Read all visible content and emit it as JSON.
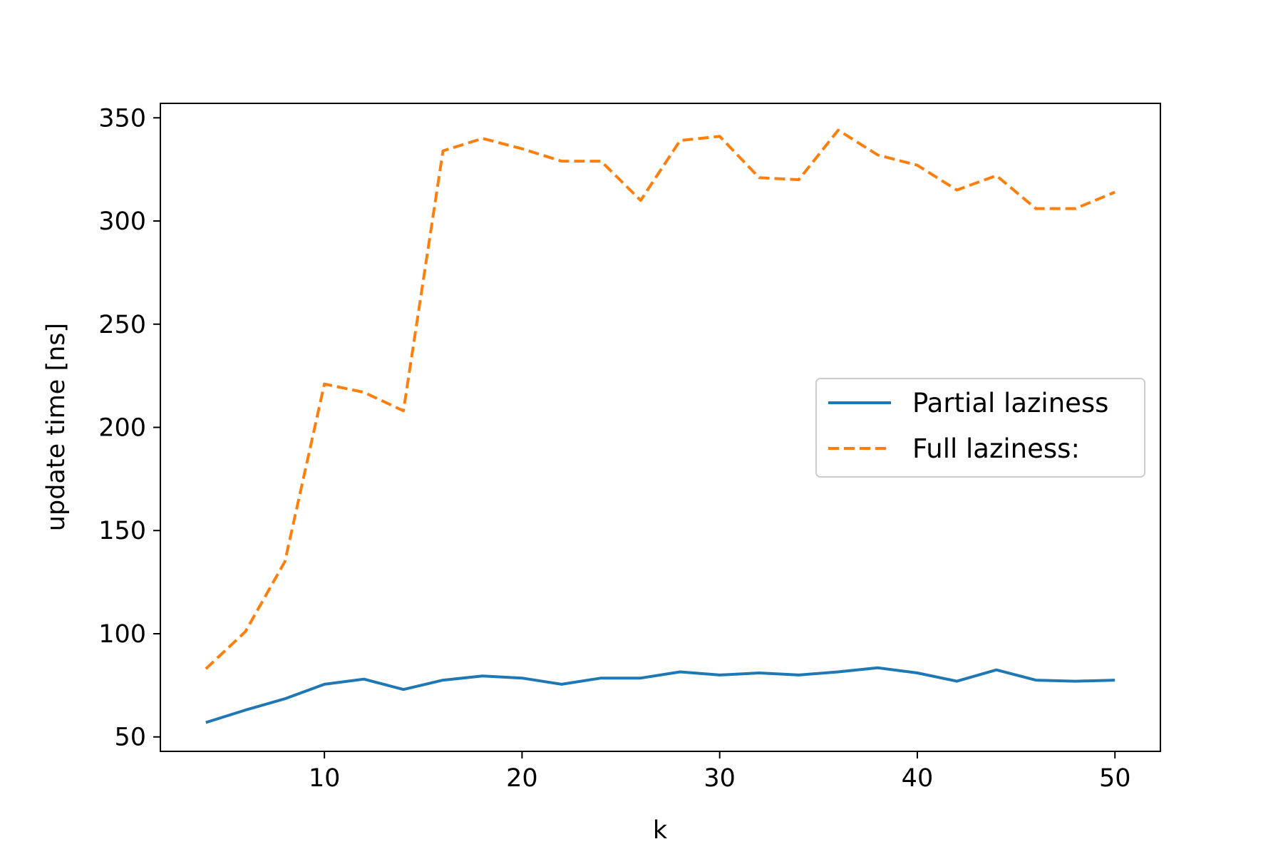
{
  "chart_data": {
    "type": "line",
    "title": "",
    "xlabel": "k",
    "ylabel": "update time [ns]",
    "xlim": [
      1.7,
      52.3
    ],
    "ylim": [
      43,
      357
    ],
    "xticks": [
      10,
      20,
      30,
      40,
      50
    ],
    "yticks": [
      50,
      100,
      150,
      200,
      250,
      300,
      350
    ],
    "grid": false,
    "legend_position": "center-right",
    "x": [
      4,
      6,
      8,
      10,
      12,
      14,
      16,
      18,
      20,
      22,
      24,
      26,
      28,
      30,
      32,
      34,
      36,
      38,
      40,
      42,
      44,
      46,
      48,
      50
    ],
    "series": [
      {
        "name": "Partial laziness",
        "color": "#1f77b4",
        "style": "solid",
        "values": [
          57,
          63,
          68.5,
          75.5,
          78,
          73,
          77.5,
          79.5,
          78.5,
          75.5,
          78.5,
          78.5,
          81.5,
          80,
          81,
          80,
          81.5,
          83.5,
          81,
          77,
          82.5,
          77.5,
          77,
          77.5
        ]
      },
      {
        "name": "Full laziness:",
        "color": "#ff7f0e",
        "style": "dashed",
        "values": [
          83,
          101,
          135,
          221,
          217,
          208,
          334,
          340,
          335,
          329,
          329,
          310,
          339,
          341,
          321,
          320,
          344,
          332,
          327,
          315,
          322,
          306,
          306,
          314
        ]
      }
    ]
  }
}
